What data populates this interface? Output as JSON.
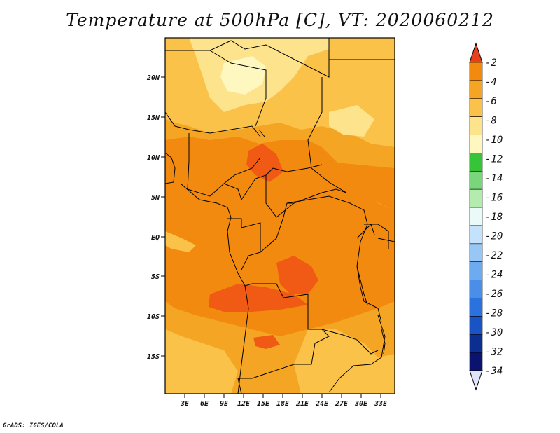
{
  "title": "Temperature at 500hPa [C], VT: 2020060212",
  "credit": "GrADS: IGES/COLA",
  "map": {
    "lat_labels": [
      "20N",
      "15N",
      "10N",
      "5N",
      "EQ",
      "5S",
      "10S",
      "15S"
    ],
    "lon_labels": [
      "3E",
      "6E",
      "9E",
      "12E",
      "15E",
      "18E",
      "21E",
      "24E",
      "27E",
      "30E",
      "33E"
    ]
  },
  "colorbar": {
    "levels": [
      "-2",
      "-4",
      "-6",
      "-8",
      "-10",
      "-12",
      "-14",
      "-16",
      "-18",
      "-20",
      "-22",
      "-24",
      "-26",
      "-28",
      "-30",
      "-32",
      "-34"
    ],
    "colors": [
      "#f05a14",
      "#f38a10",
      "#f5a524",
      "#fbc24a",
      "#fde38c",
      "#fff7c0",
      "#38c438",
      "#7ad67a",
      "#b4ecb0",
      "#eafaf8",
      "#c4e2fb",
      "#98c6f5",
      "#6eaaf0",
      "#4a8ee8",
      "#2a72de",
      "#1a54c4",
      "#0c2e90",
      "#0a1470",
      "#e0e4f8"
    ]
  },
  "field_colors": {
    "warm": "#f38a10",
    "mid": "#f5a524",
    "cool": "#fbc24a",
    "cooler": "#fde38c",
    "coolest": "#fff7c0",
    "hot": "#f05a14"
  }
}
